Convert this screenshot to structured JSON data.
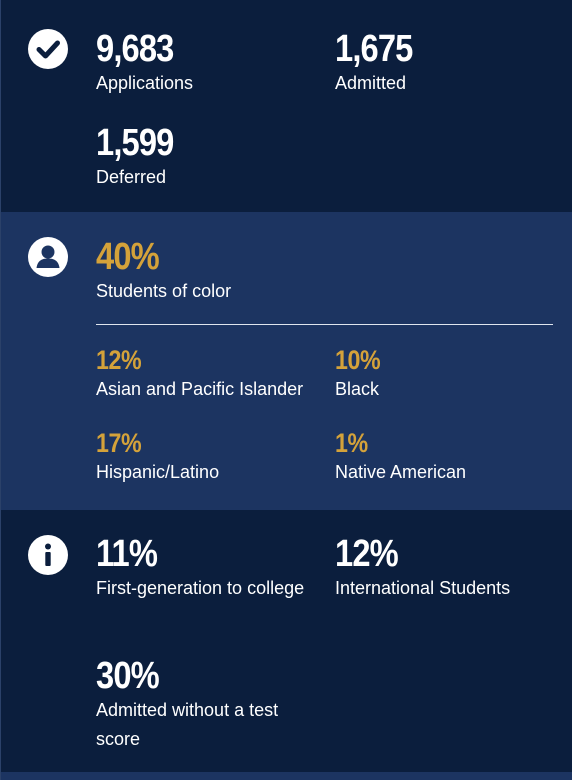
{
  "admissions": {
    "applications": {
      "value": "9,683",
      "label": "Applications"
    },
    "admitted": {
      "value": "1,675",
      "label": "Admitted"
    },
    "deferred": {
      "value": "1,599",
      "label": "Deferred"
    }
  },
  "diversity": {
    "students_of_color": {
      "value": "40%",
      "label": "Students of color"
    },
    "asian_pacific": {
      "value": "12%",
      "label": "Asian and Pacific Islander"
    },
    "black": {
      "value": "10%",
      "label": "Black"
    },
    "hispanic_latino": {
      "value": "17%",
      "label": "Hispanic/Latino"
    },
    "native_american": {
      "value": "1%",
      "label": "Native American"
    }
  },
  "other": {
    "first_gen": {
      "value": "11%",
      "label": "First-generation to college"
    },
    "international": {
      "value": "12%",
      "label": "International Students"
    },
    "test_optional": {
      "value": "30%",
      "label": "Admitted without a test score"
    }
  },
  "icons": {
    "section1": "checkmark-circle-icon",
    "section2": "person-circle-icon",
    "section3": "info-circle-icon"
  },
  "colors": {
    "navy": "#0b1e3d",
    "blue": "#1c3461",
    "gold": "#d4a23a",
    "white": "#ffffff"
  }
}
